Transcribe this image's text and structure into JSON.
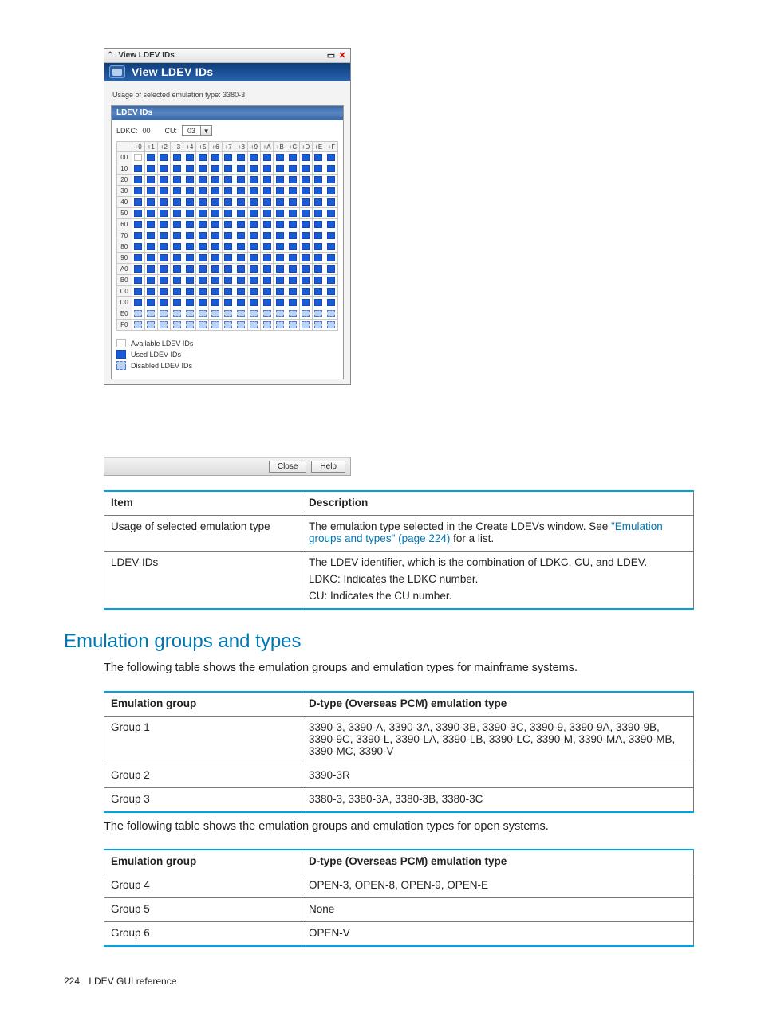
{
  "dialog": {
    "tab_title": "View LDEV IDs",
    "header_title": "View LDEV IDs",
    "usage_line": "Usage of selected emulation type:  3380-3",
    "panel_title": "LDEV IDs",
    "ldkc_label": "LDKC:",
    "ldkc_value": "00",
    "cu_label": "CU:",
    "cu_value": "03",
    "cols": [
      "+0",
      "+1",
      "+2",
      "+3",
      "+4",
      "+5",
      "+6",
      "+7",
      "+8",
      "+9",
      "+A",
      "+B",
      "+C",
      "+D",
      "+E",
      "+F"
    ],
    "rows": [
      "00",
      "10",
      "20",
      "30",
      "40",
      "50",
      "60",
      "70",
      "80",
      "90",
      "A0",
      "B0",
      "C0",
      "D0",
      "E0",
      "F0"
    ],
    "states": {
      "colors": {
        "avail": "#ffffff",
        "used": "#1b5bd6",
        "dis": "#bcd3f4"
      },
      "row_state": {
        "00": "avail_first_rest_used",
        "E0": "dis",
        "F0": "dis"
      },
      "default": "used"
    },
    "legend": [
      {
        "key": "avail",
        "label": "Available LDEV IDs"
      },
      {
        "key": "used",
        "label": "Used LDEV IDs"
      },
      {
        "key": "dis",
        "label": "Disabled LDEV IDs"
      }
    ],
    "buttons": {
      "close": "Close",
      "help": "Help"
    }
  },
  "table1": {
    "headers": [
      "Item",
      "Description"
    ],
    "rows": [
      {
        "item": "Usage of selected emulation type",
        "desc_prefix": "The emulation type selected in the Create LDEVs window. See ",
        "desc_link": "\"Emulation groups and types\" (page 224)",
        "desc_suffix": " for a list."
      },
      {
        "item": "LDEV IDs",
        "desc_lines": [
          "The LDEV identifier, which is the combination of LDKC, CU, and LDEV.",
          "LDKC: Indicates the LDKC number.",
          "CU: Indicates the CU number."
        ]
      }
    ]
  },
  "section_title": "Emulation groups and types",
  "para1": "The following table shows the emulation groups and emulation types for mainframe systems.",
  "table2": {
    "headers": [
      "Emulation group",
      "D-type (Overseas PCM) emulation type"
    ],
    "rows": [
      {
        "g": "Group 1",
        "t": "3390-3, 3390-A, 3390-3A, 3390-3B, 3390-3C, 3390-9, 3390-9A, 3390-9B, 3390-9C, 3390-L, 3390-LA, 3390-LB, 3390-LC, 3390-M, 3390-MA, 3390-MB, 3390-MC, 3390-V"
      },
      {
        "g": "Group 2",
        "t": "3390-3R"
      },
      {
        "g": "Group 3",
        "t": "3380-3, 3380-3A, 3380-3B, 3380-3C"
      }
    ]
  },
  "para2": "The following table shows the emulation groups and emulation types for open systems.",
  "table3": {
    "headers": [
      "Emulation group",
      "D-type (Overseas PCM) emulation type"
    ],
    "rows": [
      {
        "g": "Group 4",
        "t": "OPEN-3, OPEN-8, OPEN-9, OPEN-E"
      },
      {
        "g": "Group 5",
        "t": "None"
      },
      {
        "g": "Group 6",
        "t": "OPEN-V"
      }
    ]
  },
  "footer": {
    "page": "224",
    "text": "LDEV GUI reference"
  },
  "colors": {
    "accent": "#00a3e0",
    "link": "#0077b3"
  }
}
